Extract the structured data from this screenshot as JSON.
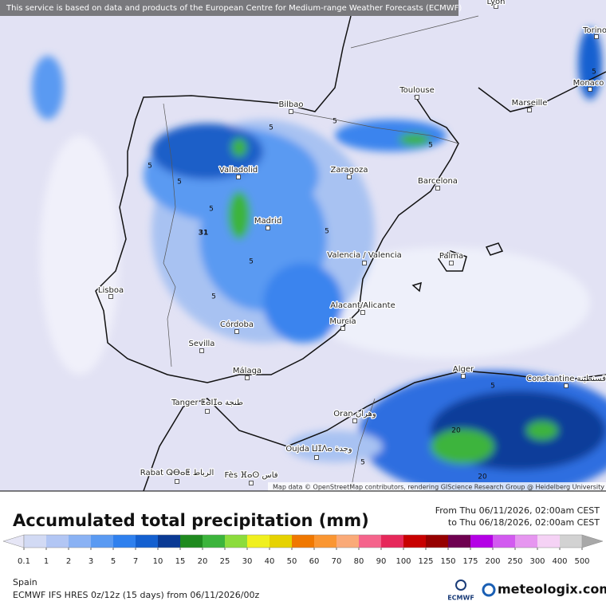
{
  "map": {
    "disclaimer": "This service is based on data and products of the European Centre for Medium-range Weather Forecasts (ECMWF)",
    "attribution": "Map data © OpenStreetMap contributors, rendering GIScience Research Group @ Heidelberg University",
    "cities": [
      "Lyon",
      "Torino",
      "Monaco",
      "Bilbao",
      "Toulouse",
      "Marseille",
      "Valladolid",
      "Zaragoza",
      "Barcelona",
      "Madrid",
      "Valencia / Valencia",
      "Palma",
      "Lisboa",
      "Alacant/Alicante",
      "Murcia",
      "Córdoba",
      "Sevilla",
      "Málaga",
      "Alger",
      "Constantine قسنطينة",
      "Tanger ⵟⴰⵏⵊⴰ طنجة",
      "Oran وهران",
      "Oujda ⵡⵊⴷⴰ وجدة",
      "Rabat ⵕⴱⴰⵟ الرباط",
      "Fès ⴼⴰⵙ فاس"
    ],
    "contour_labels": [
      5,
      5,
      5,
      5,
      5,
      5,
      5,
      5,
      5,
      5,
      31,
      5,
      20,
      5,
      20
    ]
  },
  "legend": {
    "title": "Accumulated total precipitation (mm)",
    "from": "From Thu 06/11/2026, 02:00am CEST",
    "to": "to Thu 06/18/2026, 02:00am CEST",
    "ticks": [
      0.1,
      1,
      2,
      3,
      5,
      7,
      10,
      15,
      20,
      25,
      30,
      40,
      50,
      60,
      70,
      80,
      90,
      100,
      125,
      150,
      175,
      200,
      250,
      300,
      400,
      500
    ],
    "below_color": "#e6e6f6",
    "above_color": "#a8a8a8",
    "colors": [
      "#d2daf4",
      "#b2c6f4",
      "#8ab2f4",
      "#5a9af2",
      "#2f80ee",
      "#1460d0",
      "#0a3a94",
      "#1f8a1f",
      "#3cb43c",
      "#8cdc3c",
      "#f0f01e",
      "#e6d200",
      "#f07800",
      "#fa9632",
      "#faaa78",
      "#f5648c",
      "#e6285a",
      "#c80000",
      "#960000",
      "#6e0050",
      "#b400e6",
      "#d25af0",
      "#e696f0",
      "#f5d2f5",
      "#d2d2d2"
    ]
  },
  "footer": {
    "region": "Spain",
    "model": "ECMWF IFS HRES 0z/12z (15 days) from 06/11/2026/00z",
    "ecmwf_logo": "ECMWF",
    "brand": "meteologix.com"
  }
}
